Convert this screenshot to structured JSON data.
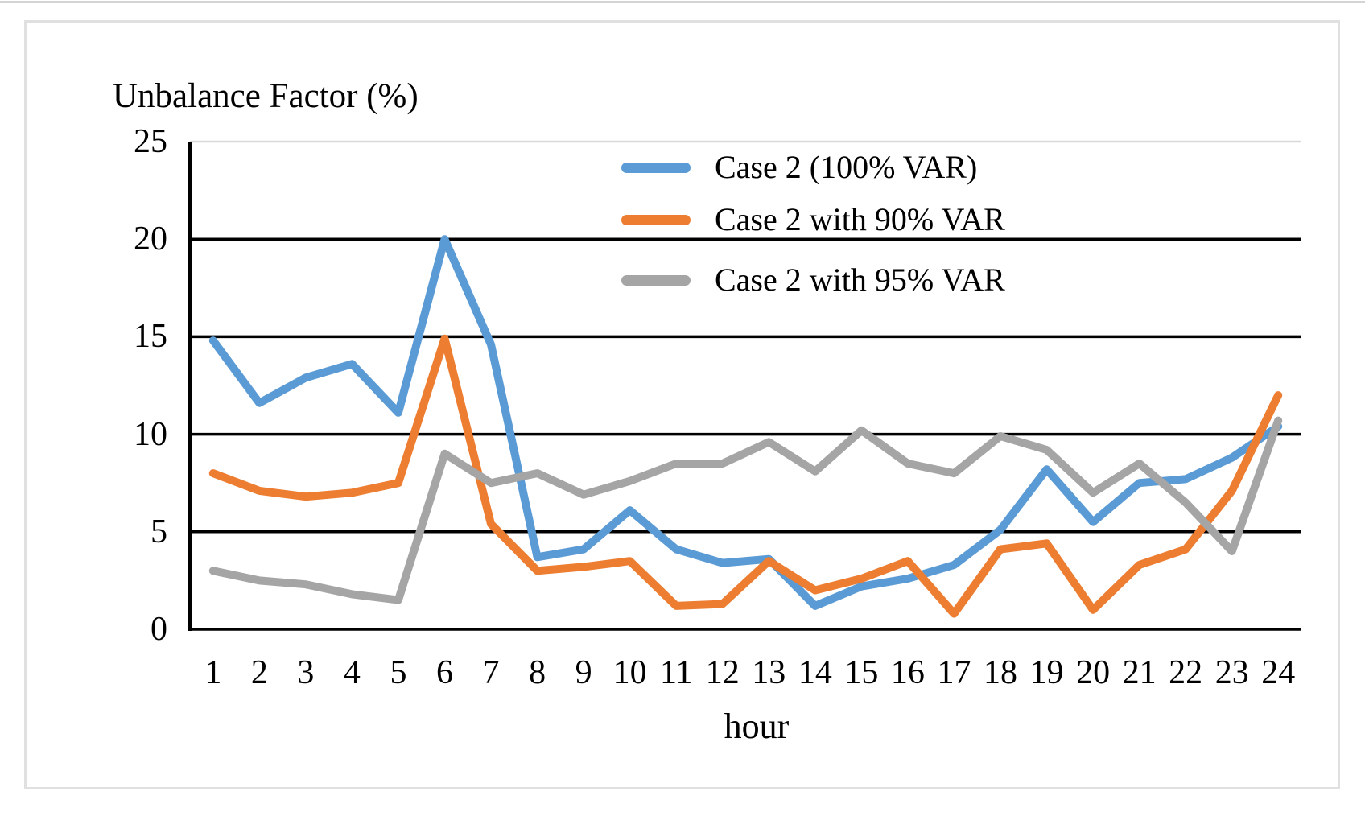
{
  "chart_data": {
    "type": "line",
    "title": "Unbalance Factor (%)",
    "xlabel": "hour",
    "ylabel": "Unbalance Factor (%)",
    "ylim": [
      0,
      25
    ],
    "yticks": [
      0,
      5,
      10,
      15,
      20,
      25
    ],
    "x": [
      1,
      2,
      3,
      4,
      5,
      6,
      7,
      8,
      9,
      10,
      11,
      12,
      13,
      14,
      15,
      16,
      17,
      18,
      19,
      20,
      21,
      22,
      23,
      24
    ],
    "grid": "horizontal",
    "legend_position": "top-right-inside",
    "series": [
      {
        "name": "Case 2 (100% VAR)",
        "color": "#5B9BD5",
        "values": [
          14.8,
          11.6,
          12.9,
          13.6,
          11.1,
          20.0,
          14.6,
          3.7,
          4.1,
          6.1,
          4.1,
          3.4,
          3.6,
          1.2,
          2.2,
          2.6,
          3.3,
          5.1,
          8.2,
          5.5,
          7.5,
          7.7,
          8.8,
          10.4
        ]
      },
      {
        "name": "Case 2 with 90% VAR",
        "color": "#ED7D31",
        "values": [
          8.0,
          7.1,
          6.8,
          7.0,
          7.5,
          14.9,
          5.4,
          3.0,
          3.2,
          3.5,
          1.2,
          1.3,
          3.5,
          2.0,
          2.6,
          3.5,
          0.8,
          4.1,
          4.4,
          1.0,
          3.3,
          4.1,
          7.1,
          12.0
        ]
      },
      {
        "name": "Case 2 with 95% VAR",
        "color": "#A5A5A5",
        "values": [
          3.0,
          2.5,
          2.3,
          1.8,
          1.5,
          9.0,
          7.5,
          8.0,
          6.9,
          7.6,
          8.5,
          8.5,
          9.6,
          8.1,
          10.2,
          8.5,
          8.0,
          9.9,
          9.2,
          7.0,
          8.5,
          6.5,
          4.0,
          10.7
        ]
      }
    ]
  },
  "colors": {
    "gridline": "#000000",
    "top_gridline": "#D9D9D9",
    "axis_line": "#000000",
    "frame_border": "#E0E0E0",
    "top_edge_line": "#D4D4D4",
    "background": "#FFFFFF"
  }
}
